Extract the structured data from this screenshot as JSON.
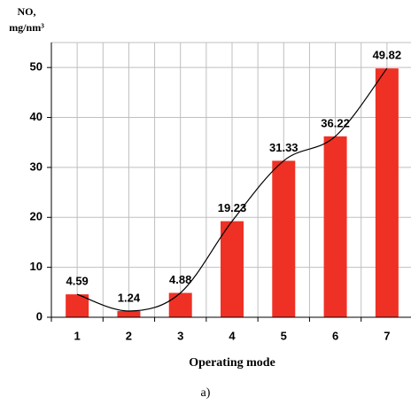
{
  "chart_data": {
    "type": "bar",
    "y_label": [
      "NO,",
      "mg/nm³"
    ],
    "x_label": "Operating mode",
    "caption": "a)",
    "categories": [
      "1",
      "2",
      "3",
      "4",
      "5",
      "6",
      "7"
    ],
    "values": [
      4.59,
      1.24,
      4.88,
      19.23,
      31.33,
      36.22,
      49.82
    ],
    "color": "#ee3124",
    "trend_line": true,
    "ylim": [
      0,
      55
    ],
    "yticks": [
      0,
      10,
      20,
      30,
      40,
      50
    ],
    "grid": true
  }
}
